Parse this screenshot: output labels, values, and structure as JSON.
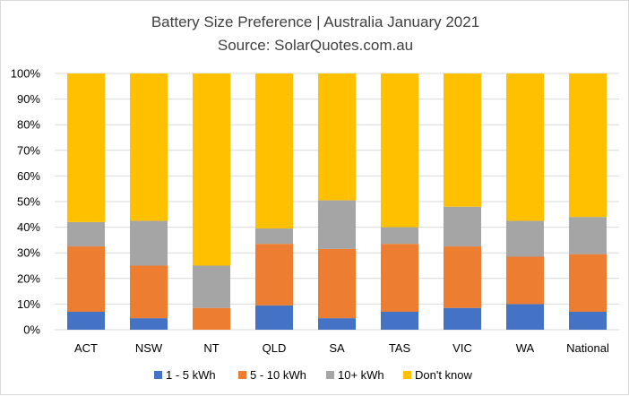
{
  "chart_data": {
    "type": "bar",
    "stacked": true,
    "title": "Battery Size Preference  | Australia January 2021",
    "subtitle": "Source: SolarQuotes.com.au",
    "categories": [
      "ACT",
      "NSW",
      "NT",
      "QLD",
      "SA",
      "TAS",
      "VIC",
      "WA",
      "National"
    ],
    "ylim": [
      0,
      100
    ],
    "yticks": [
      "0%",
      "10%",
      "20%",
      "30%",
      "40%",
      "50%",
      "60%",
      "70%",
      "80%",
      "90%",
      "100%"
    ],
    "grid": true,
    "legend_position": "bottom",
    "series": [
      {
        "name": "1 - 5 kWh",
        "color": "#4472c4",
        "values": [
          7,
          4.5,
          0,
          9.5,
          4.5,
          7,
          8.5,
          10,
          7
        ]
      },
      {
        "name": "5 - 10 kWh",
        "color": "#ed7d31",
        "values": [
          25.5,
          20.5,
          8.5,
          24,
          27,
          26.5,
          24,
          18.5,
          22.5
        ]
      },
      {
        "name": "10+ kWh",
        "color": "#a5a5a5",
        "values": [
          9.5,
          17.5,
          16.5,
          6,
          19,
          6.5,
          15.5,
          14,
          14.5
        ]
      },
      {
        "name": "Don't know",
        "color": "#ffc000",
        "values": [
          58,
          57.5,
          75,
          60.5,
          49.5,
          60,
          52,
          57.5,
          56
        ]
      }
    ]
  }
}
